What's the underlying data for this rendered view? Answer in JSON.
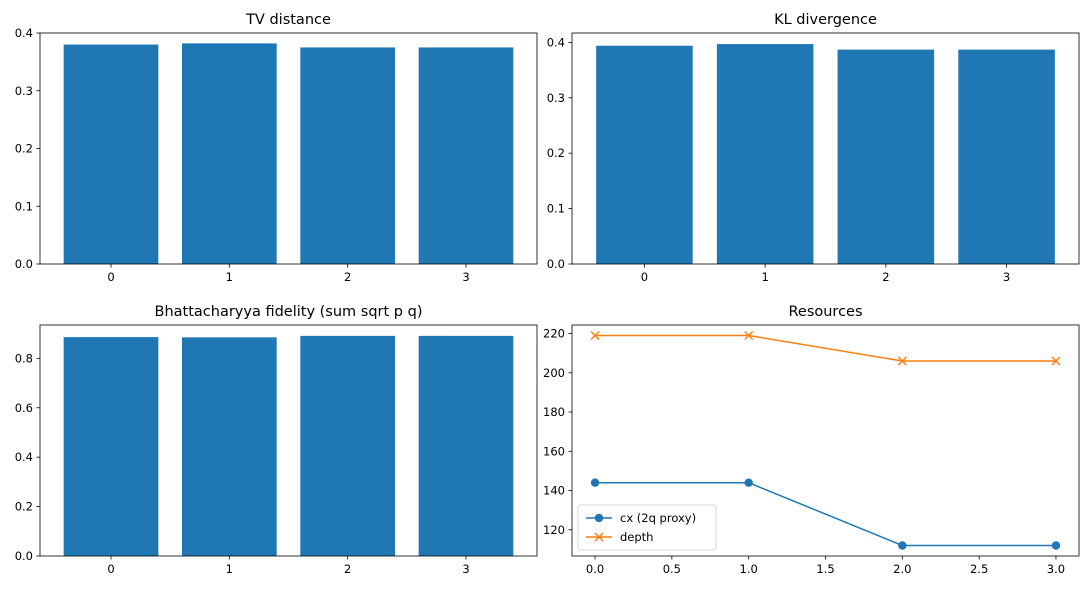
{
  "chart_data": [
    {
      "type": "bar",
      "title": "TV distance",
      "categories": [
        "0",
        "1",
        "2",
        "3"
      ],
      "values": [
        0.38,
        0.382,
        0.375,
        0.375
      ],
      "ylim": [
        0,
        0.4
      ],
      "yticks": [
        "0.0",
        "0.1",
        "0.2",
        "0.3",
        "0.4"
      ],
      "color": "#1f77b4",
      "grid": false
    },
    {
      "type": "bar",
      "title": "KL divergence",
      "categories": [
        "0",
        "1",
        "2",
        "3"
      ],
      "values": [
        0.394,
        0.397,
        0.387,
        0.387
      ],
      "ylim": [
        0,
        0.417
      ],
      "yticks": [
        "0.0",
        "0.1",
        "0.2",
        "0.3",
        "0.4"
      ],
      "color": "#1f77b4",
      "grid": false
    },
    {
      "type": "bar",
      "title": "Bhattacharyya fidelity (sum sqrt p q)",
      "categories": [
        "0",
        "1",
        "2",
        "3"
      ],
      "values": [
        0.886,
        0.885,
        0.891,
        0.891
      ],
      "ylim": [
        0,
        0.935
      ],
      "yticks": [
        "0.0",
        "0.2",
        "0.4",
        "0.6",
        "0.8"
      ],
      "color": "#1f77b4",
      "grid": false
    },
    {
      "type": "line",
      "title": "Resources",
      "x": [
        0.0,
        1.0,
        2.0,
        3.0
      ],
      "xlim": [
        -0.15,
        3.15
      ],
      "ylim": [
        106.65,
        224.35
      ],
      "xticks": [
        "0.0",
        "0.5",
        "1.0",
        "1.5",
        "2.0",
        "2.5",
        "3.0"
      ],
      "yticks": [
        "120",
        "140",
        "160",
        "180",
        "200",
        "220"
      ],
      "series": [
        {
          "name": "cx (2q proxy)",
          "values": [
            144,
            144,
            112,
            112
          ],
          "color": "#1f77b4",
          "marker": "circle"
        },
        {
          "name": "depth",
          "values": [
            219,
            219,
            206,
            206
          ],
          "color": "#ff7f0e",
          "marker": "x"
        }
      ],
      "legend": "lower-left",
      "grid": false
    }
  ]
}
